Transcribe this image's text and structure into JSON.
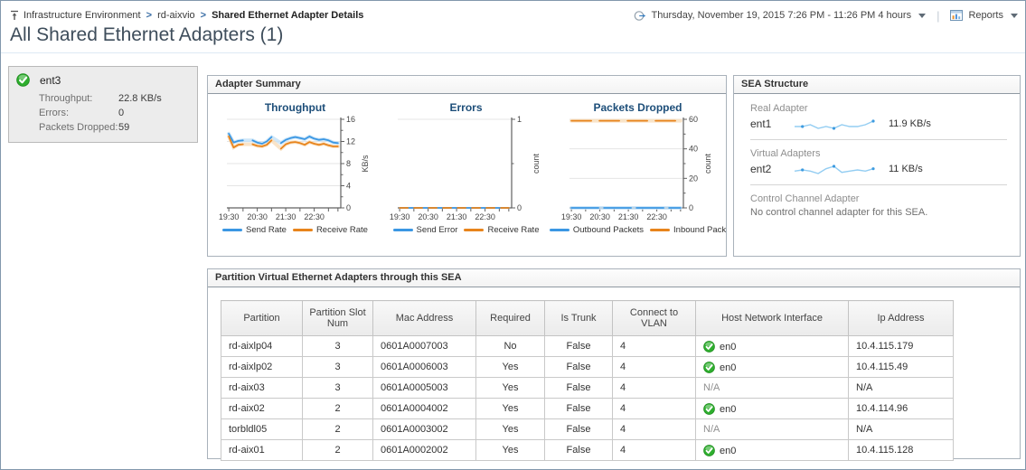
{
  "page": {
    "title": "All Shared Ethernet Adapters (1)"
  },
  "breadcrumb": {
    "separator": ">",
    "items": [
      {
        "label": "Infrastructure Environment"
      },
      {
        "label": "rd-aixvio"
      },
      {
        "label": "Shared Ethernet Adapter Details"
      }
    ]
  },
  "toolbar": {
    "time_range": "Thursday, November 19, 2015 7:26 PM - 11:26 PM 4 hours",
    "reports_label": "Reports"
  },
  "adapter_tile": {
    "name": "ent3",
    "status_icon": "green-check",
    "metrics": [
      {
        "label": "Throughput:",
        "value": "22.8 KB/s"
      },
      {
        "label": "Errors:",
        "value": "0"
      },
      {
        "label": "Packets Dropped:",
        "value": "59"
      }
    ]
  },
  "adapter_summary": {
    "title": "Adapter Summary"
  },
  "sea_structure": {
    "title": "SEA Structure",
    "sections": [
      {
        "label": "Real Adapter",
        "name": "ent1",
        "value": "11.9 KB/s",
        "sparkline": [
          11.8,
          11.8,
          11.9,
          11.7,
          11.8,
          11.7,
          11.9,
          11.8,
          11.8,
          11.9,
          12.1
        ]
      },
      {
        "label": "Virtual Adapters",
        "name": "ent2",
        "value": "11 KB/s",
        "sparkline": [
          11.0,
          11.1,
          11.0,
          10.8,
          11.2,
          11.4,
          10.9,
          11.0,
          11.1,
          11.0,
          11.2
        ]
      },
      {
        "label": "Control Channel Adapter",
        "text": "No control channel adapter for this SEA."
      }
    ]
  },
  "partition_table": {
    "title": "Partition Virtual Ethernet Adapters through this SEA",
    "columns": [
      "Partition",
      "Partition Slot Num",
      "Mac Address",
      "Required",
      "Is Trunk",
      "Connect to VLAN",
      "Host Network Interface",
      "Ip Address"
    ],
    "rows": [
      {
        "partition": "rd-aixlp04",
        "slot": "3",
        "mac": "0601A0007003",
        "required": "No",
        "trunk": "False",
        "vlan": "4",
        "host": "en0",
        "host_status": "ok",
        "ip": "10.4.115.179"
      },
      {
        "partition": "rd-aixlp02",
        "slot": "3",
        "mac": "0601A0006003",
        "required": "Yes",
        "trunk": "False",
        "vlan": "4",
        "host": "en0",
        "host_status": "ok",
        "ip": "10.4.115.49"
      },
      {
        "partition": "rd-aix03",
        "slot": "3",
        "mac": "0601A0005003",
        "required": "Yes",
        "trunk": "False",
        "vlan": "4",
        "host": "N/A",
        "host_status": "na",
        "ip": "N/A"
      },
      {
        "partition": "rd-aix02",
        "slot": "2",
        "mac": "0601A0004002",
        "required": "Yes",
        "trunk": "False",
        "vlan": "4",
        "host": "en0",
        "host_status": "ok",
        "ip": "10.4.114.96"
      },
      {
        "partition": "torbldl05",
        "slot": "2",
        "mac": "0601A0003002",
        "required": "Yes",
        "trunk": "False",
        "vlan": "4",
        "host": "N/A",
        "host_status": "na",
        "ip": "N/A"
      },
      {
        "partition": "rd-aix01",
        "slot": "2",
        "mac": "0601A0002002",
        "required": "Yes",
        "trunk": "False",
        "vlan": "4",
        "host": "en0",
        "host_status": "ok",
        "ip": "10.4.115.128"
      }
    ]
  },
  "colors": {
    "series_blue": "#3b97e3",
    "series_blue_pale": "#c3e1f8",
    "series_orange": "#e8841c",
    "series_orange_pale": "#f8ddbb",
    "status_green": "#2eae2e"
  },
  "chart_data": [
    {
      "type": "line",
      "title": "Throughput",
      "ylabel": "KB/s",
      "ylim": [
        0,
        16
      ],
      "yticks": [
        0,
        4,
        8,
        12,
        16
      ],
      "yminor": [
        2,
        6,
        10,
        14
      ],
      "xlim": [
        0,
        240
      ],
      "xticks": [
        {
          "t": 4,
          "label": "19:30"
        },
        {
          "t": 34,
          "label": ""
        },
        {
          "t": 64,
          "label": "20:30"
        },
        {
          "t": 94,
          "label": ""
        },
        {
          "t": 124,
          "label": "21:30"
        },
        {
          "t": 154,
          "label": ""
        },
        {
          "t": 184,
          "label": "22:30"
        },
        {
          "t": 214,
          "label": ""
        },
        {
          "t": 234,
          "label": ""
        }
      ],
      "x": [
        4,
        14,
        24,
        34,
        44,
        54,
        64,
        74,
        84,
        94,
        104,
        114,
        124,
        134,
        144,
        154,
        164,
        174,
        184,
        194,
        204,
        214,
        224,
        234
      ],
      "series": [
        {
          "name": "Send Rate",
          "color": "#3b97e3",
          "halo": true,
          "values": [
            13.4,
            11.8,
            12.1,
            12.2,
            null,
            12.2,
            11.8,
            11.6,
            12.0,
            12.8,
            null,
            11.7,
            12.3,
            12.6,
            12.8,
            12.6,
            12.4,
            12.9,
            12.5,
            12.3,
            12.4,
            12.2,
            11.8,
            11.7
          ]
        },
        {
          "name": "Receive Rate",
          "color": "#e8841c",
          "halo": true,
          "values": [
            12.9,
            10.9,
            11.4,
            11.5,
            null,
            11.5,
            11.2,
            11.1,
            11.4,
            12.2,
            null,
            10.7,
            11.5,
            11.8,
            11.9,
            11.7,
            11.4,
            11.9,
            11.6,
            11.4,
            11.6,
            11.3,
            11.1,
            11.1
          ]
        }
      ],
      "legend_position": "bottom"
    },
    {
      "type": "line",
      "title": "Errors",
      "ylabel": "count",
      "ylim": [
        0,
        1
      ],
      "yticks": [
        0,
        1
      ],
      "yminor": [
        0.5
      ],
      "xlim": [
        0,
        240
      ],
      "xticks": [
        {
          "t": 4,
          "label": "19:30"
        },
        {
          "t": 34,
          "label": ""
        },
        {
          "t": 64,
          "label": "20:30"
        },
        {
          "t": 94,
          "label": ""
        },
        {
          "t": 124,
          "label": "21:30"
        },
        {
          "t": 154,
          "label": ""
        },
        {
          "t": 184,
          "label": "22:30"
        },
        {
          "t": 214,
          "label": ""
        },
        {
          "t": 234,
          "label": ""
        }
      ],
      "x": [
        4,
        14,
        24,
        34,
        44,
        54,
        64,
        74,
        84,
        94,
        104,
        114,
        124,
        134,
        144,
        154,
        164,
        174,
        184,
        194,
        204,
        214,
        224,
        234
      ],
      "series": [
        {
          "name": "Send Error",
          "color": "#3b97e3",
          "halo": false,
          "values": [
            0,
            0,
            0,
            0,
            0,
            0,
            0,
            0,
            0,
            0,
            0,
            0,
            0,
            0,
            0,
            0,
            0,
            0,
            0,
            0,
            0,
            0,
            0,
            0
          ]
        },
        {
          "name": "Receive Rate",
          "color": "#e8841c",
          "halo": false,
          "dash": "9 7",
          "values": [
            0,
            0,
            0,
            0,
            0,
            0,
            0,
            0,
            0,
            0,
            0,
            0,
            0,
            0,
            0,
            0,
            0,
            0,
            0,
            0,
            0,
            0,
            0,
            0
          ]
        }
      ],
      "legend_position": "bottom"
    },
    {
      "type": "line",
      "title": "Packets Dropped",
      "ylabel": "count",
      "ylim": [
        0,
        60
      ],
      "yticks": [
        0,
        20,
        40,
        60
      ],
      "yminor": [
        10,
        30,
        50
      ],
      "xlim": [
        0,
        240
      ],
      "xticks": [
        {
          "t": 4,
          "label": "19:30"
        },
        {
          "t": 34,
          "label": ""
        },
        {
          "t": 64,
          "label": "20:30"
        },
        {
          "t": 94,
          "label": ""
        },
        {
          "t": 124,
          "label": "21:30"
        },
        {
          "t": 154,
          "label": ""
        },
        {
          "t": 184,
          "label": "22:30"
        },
        {
          "t": 214,
          "label": ""
        },
        {
          "t": 234,
          "label": ""
        }
      ],
      "x": [
        4,
        14,
        24,
        34,
        44,
        54,
        64,
        74,
        84,
        94,
        104,
        114,
        124,
        134,
        144,
        154,
        164,
        174,
        184,
        194,
        204,
        214,
        224,
        234
      ],
      "series": [
        {
          "name": "Outbound Packets",
          "color": "#3b97e3",
          "halo": true,
          "dash": "30 6",
          "values": [
            0,
            0,
            0,
            0,
            0,
            0,
            0,
            0,
            0,
            0,
            0,
            0,
            0,
            0,
            0,
            0,
            0,
            0,
            0,
            0,
            0,
            0,
            0,
            0
          ]
        },
        {
          "name": "Inbound Pack",
          "color": "#e8841c",
          "halo": true,
          "dash": "22 9",
          "values": [
            59,
            59,
            59,
            59,
            59,
            59,
            59,
            59,
            59,
            59,
            59,
            59,
            59,
            59,
            59,
            59,
            59,
            59,
            59,
            59,
            59,
            59,
            59,
            59
          ]
        }
      ],
      "legend_position": "bottom"
    }
  ]
}
